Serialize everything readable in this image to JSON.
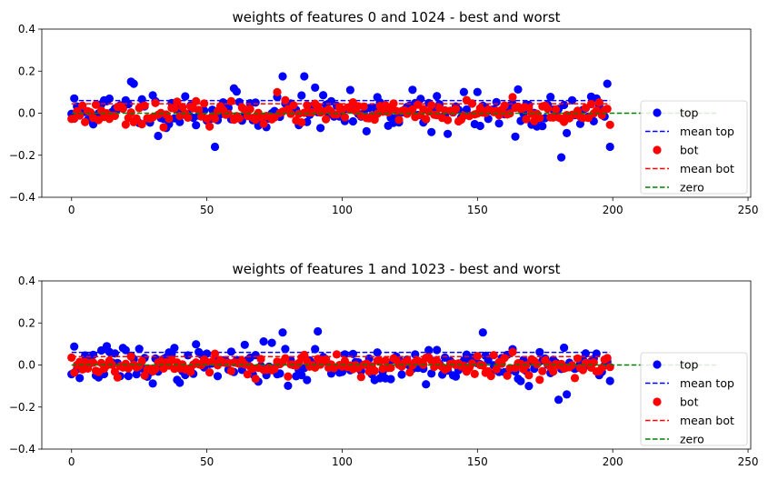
{
  "chart_data": [
    {
      "type": "scatter",
      "title": "weights of features 0 and 1024 - best and worst",
      "xlim": [
        -11,
        251
      ],
      "ylim": [
        -0.4,
        0.4
      ],
      "xticks": [
        0,
        50,
        100,
        150,
        200,
        250
      ],
      "yticks": [
        -0.4,
        -0.2,
        0.0,
        0.2,
        0.4
      ],
      "xtick_labels": [
        "0",
        "50",
        "100",
        "150",
        "200",
        "250"
      ],
      "ytick_labels": [
        "−0.4",
        "−0.2",
        "0.0",
        "0.2",
        "0.4"
      ],
      "legend_position": "lower-right",
      "legend": [
        "top",
        "mean top",
        "bot",
        "mean bot",
        "zero"
      ],
      "series": [
        {
          "name": "top",
          "kind": "scatter",
          "color": "#0000ff",
          "n": 200,
          "seed": 11,
          "spread": 0.085,
          "center": 0.01,
          "note_extremes": [
            [
              22,
              0.15
            ],
            [
              23,
              0.14
            ],
            [
              53,
              -0.16
            ],
            [
              78,
              0.175
            ],
            [
              86,
              0.175
            ],
            [
              181,
              -0.21
            ],
            [
              198,
              0.14
            ],
            [
              199,
              -0.16
            ]
          ]
        },
        {
          "name": "mean top",
          "kind": "hline",
          "color": "#0000ff",
          "y": 0.06,
          "x": [
            0,
            199
          ]
        },
        {
          "name": "bot",
          "kind": "scatter",
          "color": "#ff0000",
          "n": 200,
          "seed": 23,
          "spread": 0.045,
          "center": 0.0,
          "note_extremes": [
            [
              76,
              0.1
            ]
          ]
        },
        {
          "name": "mean bot",
          "kind": "hline",
          "color": "#ff0000",
          "y": 0.045,
          "x": [
            0,
            199
          ]
        },
        {
          "name": "zero",
          "kind": "hline",
          "color": "#008000",
          "y": 0.0,
          "x": [
            0,
            239
          ]
        }
      ]
    },
    {
      "type": "scatter",
      "title": "weights of features 1 and 1023 - best and worst",
      "xlim": [
        -11,
        251
      ],
      "ylim": [
        -0.4,
        0.4
      ],
      "xticks": [
        0,
        50,
        100,
        150,
        200,
        250
      ],
      "yticks": [
        -0.4,
        -0.2,
        0.0,
        0.2,
        0.4
      ],
      "xtick_labels": [
        "0",
        "50",
        "100",
        "150",
        "200",
        "250"
      ],
      "ytick_labels": [
        "−0.4",
        "−0.2",
        "0.0",
        "0.2",
        "0.4"
      ],
      "legend_position": "lower-right",
      "legend": [
        "top",
        "mean top",
        "bot",
        "mean bot",
        "zero"
      ],
      "series": [
        {
          "name": "top",
          "kind": "scatter",
          "color": "#0000ff",
          "n": 200,
          "seed": 37,
          "spread": 0.08,
          "center": 0.005,
          "note_extremes": [
            [
              78,
              0.155
            ],
            [
              91,
              0.16
            ],
            [
              152,
              0.155
            ],
            [
              180,
              -0.165
            ],
            [
              183,
              -0.14
            ]
          ]
        },
        {
          "name": "mean top",
          "kind": "hline",
          "color": "#0000ff",
          "y": 0.06,
          "x": [
            0,
            199
          ]
        },
        {
          "name": "bot",
          "kind": "scatter",
          "color": "#ff0000",
          "n": 200,
          "seed": 53,
          "spread": 0.045,
          "center": 0.0,
          "note_extremes": []
        },
        {
          "name": "mean bot",
          "kind": "hline",
          "color": "#ff0000",
          "y": 0.04,
          "x": [
            0,
            199
          ]
        },
        {
          "name": "zero",
          "kind": "hline",
          "color": "#008000",
          "y": 0.0,
          "x": [
            0,
            239
          ]
        }
      ]
    }
  ]
}
